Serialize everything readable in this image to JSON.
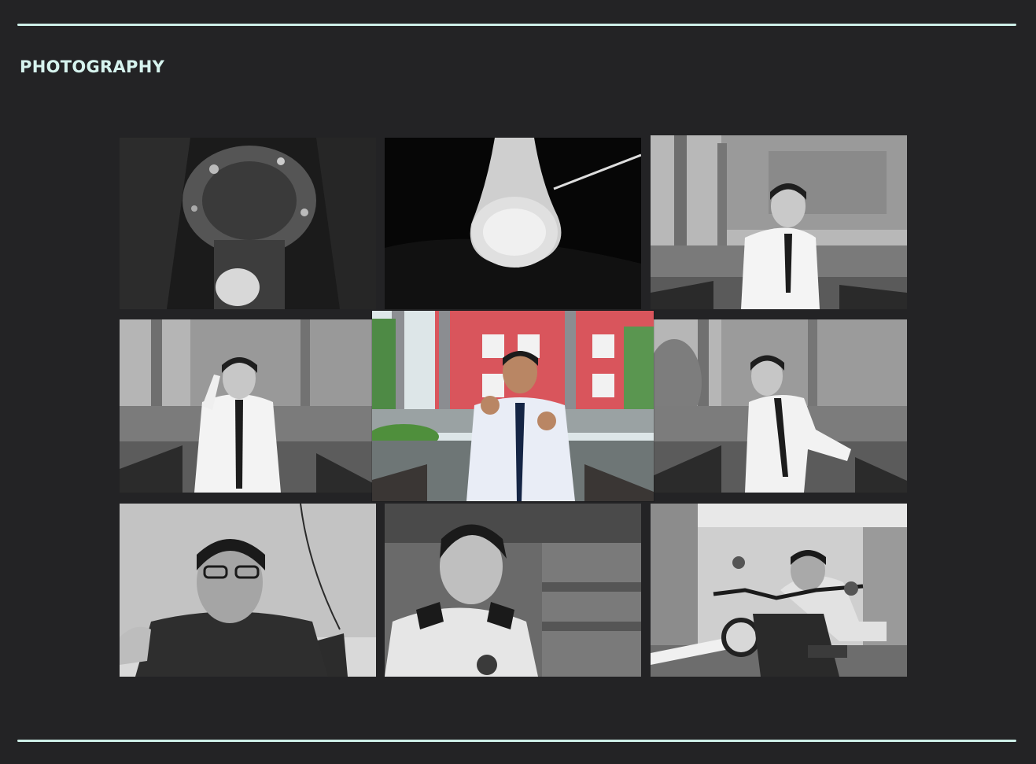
{
  "section": {
    "title": "PHOTOGRAPHY"
  },
  "colors": {
    "background": "#232325",
    "accent": "#cdeee7",
    "title": "#d6f3ee",
    "featured_building": "#d9555c"
  },
  "gallery": {
    "photos": [
      {
        "id": "p1",
        "featured": false
      },
      {
        "id": "p2",
        "featured": false
      },
      {
        "id": "p3",
        "featured": false
      },
      {
        "id": "p4",
        "featured": false
      },
      {
        "id": "p5",
        "featured": true
      },
      {
        "id": "p6",
        "featured": false
      },
      {
        "id": "p7",
        "featured": false
      },
      {
        "id": "p8",
        "featured": false
      },
      {
        "id": "p9",
        "featured": false
      }
    ]
  }
}
